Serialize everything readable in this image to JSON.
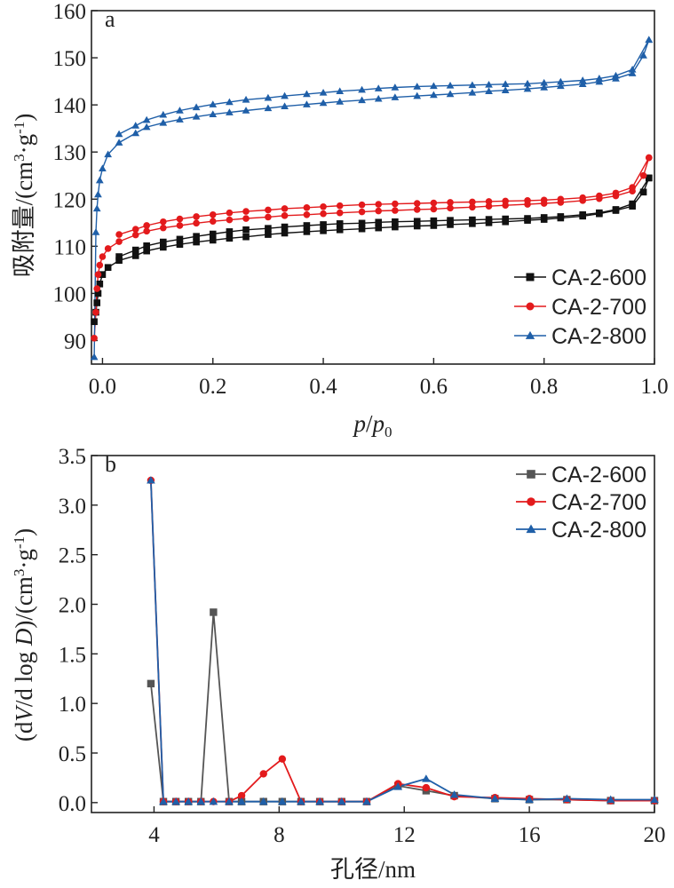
{
  "colors": {
    "CA-2-600": "#111111",
    "CA-2-700": "#e31a1c",
    "CA-2-800": "#1f5fa8",
    "CA-2-600-b": "#555555"
  },
  "chart_data": [
    {
      "panel": "a",
      "type": "line",
      "xlabel_italic_p": "p",
      "xlabel_sep": "/",
      "xlabel_italic_p0": "p",
      "xlabel_sub": "0",
      "ylabel_main": "吸附量/(cm",
      "ylabel_sup1": "3",
      "ylabel_mid": "·g",
      "ylabel_sup2": "-1",
      "ylabel_end": ")",
      "xlim": [
        -0.02,
        1.0
      ],
      "ylim": [
        85,
        160
      ],
      "xticks": [
        "0.0",
        "0.2",
        "0.4",
        "0.6",
        "0.8",
        "1.0"
      ],
      "yticks": [
        "90",
        "100",
        "110",
        "120",
        "130",
        "140",
        "150",
        "160"
      ],
      "legend_position": "lower-right",
      "series": [
        {
          "name": "CA-2-600",
          "marker": "square",
          "adsorption": {
            "x": [
              -0.015,
              -0.012,
              -0.01,
              -0.008,
              -0.005,
              0.0,
              0.01,
              0.03,
              0.06,
              0.08,
              0.11,
              0.14,
              0.17,
              0.2,
              0.23,
              0.26,
              0.3,
              0.33,
              0.37,
              0.4,
              0.43,
              0.47,
              0.5,
              0.53,
              0.57,
              0.6,
              0.63,
              0.67,
              0.7,
              0.73,
              0.77,
              0.8,
              0.83,
              0.87,
              0.9,
              0.93,
              0.96,
              0.98,
              0.99
            ],
            "y": [
              94,
              96,
              98,
              100,
              102,
              104,
              105.5,
              107,
              108,
              109,
              109.8,
              110.4,
              110.9,
              111.3,
              111.7,
              112,
              112.5,
              112.8,
              113.1,
              113.3,
              113.5,
              113.7,
              113.9,
              114.1,
              114.3,
              114.4,
              114.6,
              114.8,
              115,
              115.2,
              115.5,
              115.7,
              116,
              116.4,
              116.9,
              117.6,
              118.5,
              121.5,
              124.5
            ]
          },
          "desorption": {
            "x": [
              0.99,
              0.96,
              0.93,
              0.9,
              0.87,
              0.83,
              0.8,
              0.77,
              0.73,
              0.7,
              0.67,
              0.63,
              0.6,
              0.57,
              0.53,
              0.5,
              0.47,
              0.43,
              0.4,
              0.37,
              0.33,
              0.3,
              0.26,
              0.23,
              0.2,
              0.17,
              0.14,
              0.11,
              0.08,
              0.06,
              0.03
            ],
            "y": [
              124.5,
              119,
              117.8,
              117.1,
              116.7,
              116.3,
              116.1,
              115.9,
              115.8,
              115.7,
              115.6,
              115.5,
              115.4,
              115.3,
              115.2,
              115.1,
              114.9,
              114.8,
              114.6,
              114.4,
              114.1,
              113.8,
              113.5,
              113.1,
              112.6,
              112.1,
              111.5,
              110.9,
              110.1,
              109.2,
              107.8
            ]
          }
        },
        {
          "name": "CA-2-700",
          "marker": "circle",
          "adsorption": {
            "x": [
              -0.015,
              -0.012,
              -0.01,
              -0.008,
              -0.005,
              0.0,
              0.01,
              0.03,
              0.06,
              0.08,
              0.11,
              0.14,
              0.17,
              0.2,
              0.23,
              0.26,
              0.3,
              0.33,
              0.37,
              0.4,
              0.43,
              0.47,
              0.5,
              0.53,
              0.57,
              0.6,
              0.63,
              0.67,
              0.7,
              0.73,
              0.77,
              0.8,
              0.83,
              0.87,
              0.9,
              0.93,
              0.96,
              0.98,
              0.99
            ],
            "y": [
              90.5,
              96,
              101,
              104,
              106,
              107.8,
              109.5,
              111,
              112.4,
              113.2,
              113.9,
              114.4,
              114.9,
              115.3,
              115.6,
              115.9,
              116.2,
              116.5,
              116.7,
              116.9,
              117.1,
              117.3,
              117.5,
              117.6,
              117.8,
              117.9,
              118.1,
              118.3,
              118.5,
              118.7,
              118.9,
              119.1,
              119.3,
              119.7,
              120.1,
              120.7,
              121.7,
              125,
              128.8
            ]
          },
          "desorption": {
            "x": [
              0.99,
              0.96,
              0.93,
              0.9,
              0.87,
              0.83,
              0.8,
              0.77,
              0.73,
              0.7,
              0.67,
              0.63,
              0.6,
              0.57,
              0.53,
              0.5,
              0.47,
              0.43,
              0.4,
              0.37,
              0.33,
              0.3,
              0.26,
              0.23,
              0.2,
              0.17,
              0.14,
              0.11,
              0.08,
              0.06,
              0.03
            ],
            "y": [
              128.8,
              122.5,
              121.3,
              120.7,
              120.3,
              120,
              119.8,
              119.7,
              119.6,
              119.5,
              119.4,
              119.3,
              119.2,
              119.1,
              119,
              118.9,
              118.8,
              118.6,
              118.4,
              118.2,
              118,
              117.7,
              117.4,
              117.1,
              116.7,
              116.3,
              115.8,
              115.2,
              114.4,
              113.6,
              112.5
            ]
          }
        },
        {
          "name": "CA-2-800",
          "marker": "triangle",
          "adsorption": {
            "x": [
              -0.015,
              -0.012,
              -0.01,
              -0.008,
              -0.005,
              0.0,
              0.01,
              0.03,
              0.06,
              0.08,
              0.11,
              0.14,
              0.17,
              0.2,
              0.23,
              0.26,
              0.3,
              0.33,
              0.37,
              0.4,
              0.43,
              0.47,
              0.5,
              0.53,
              0.57,
              0.6,
              0.63,
              0.67,
              0.7,
              0.73,
              0.77,
              0.8,
              0.83,
              0.87,
              0.9,
              0.93,
              0.96,
              0.98,
              0.99
            ],
            "y": [
              86.5,
              113,
              118,
              121,
              124,
              126.5,
              129.5,
              132,
              134,
              135.3,
              136.2,
              136.9,
              137.5,
              138,
              138.4,
              138.8,
              139.3,
              139.7,
              140.1,
              140.4,
              140.7,
              141,
              141.3,
              141.6,
              141.9,
              142.1,
              142.3,
              142.6,
              142.9,
              143.1,
              143.4,
              143.7,
              144,
              144.4,
              144.9,
              145.6,
              146.7,
              150.5,
              153.8
            ]
          },
          "desorption": {
            "x": [
              0.99,
              0.96,
              0.93,
              0.9,
              0.87,
              0.83,
              0.8,
              0.77,
              0.73,
              0.7,
              0.67,
              0.63,
              0.6,
              0.57,
              0.53,
              0.5,
              0.47,
              0.43,
              0.4,
              0.37,
              0.33,
              0.3,
              0.26,
              0.23,
              0.2,
              0.17,
              0.14,
              0.11,
              0.08,
              0.06,
              0.03
            ],
            "y": [
              153.8,
              147.5,
              146.2,
              145.6,
              145.2,
              144.9,
              144.7,
              144.5,
              144.4,
              144.3,
              144.2,
              144.1,
              144,
              143.9,
              143.7,
              143.5,
              143.2,
              142.9,
              142.6,
              142.3,
              141.9,
              141.5,
              141.1,
              140.6,
              140.1,
              139.5,
              138.8,
              137.9,
              136.8,
              135.6,
              133.8
            ]
          }
        }
      ]
    },
    {
      "panel": "b",
      "type": "line",
      "xlabel": "孔径/nm",
      "ylabel_pre": "(d",
      "ylabel_italic_V": "V",
      "ylabel_mid": "/d log ",
      "ylabel_italic_D": "D",
      "ylabel_post": ")/(cm",
      "ylabel_sup1": "3",
      "ylabel_mid2": "·g",
      "ylabel_sup2": "-1",
      "ylabel_end": ")",
      "xlim": [
        2,
        20
      ],
      "ylim": [
        -0.1,
        3.5
      ],
      "xticks": [
        "4",
        "8",
        "12",
        "16",
        "20"
      ],
      "yticks": [
        "0.0",
        "0.5",
        "1.0",
        "1.5",
        "2.0",
        "2.5",
        "3.0",
        "3.5"
      ],
      "legend_position": "top-right",
      "series": [
        {
          "name": "CA-2-600",
          "marker": "square",
          "x": [
            3.9,
            4.3,
            4.7,
            5.1,
            5.5,
            5.9,
            6.4,
            6.8,
            7.5,
            8.1,
            8.7,
            9.3,
            10.0,
            10.8,
            11.8,
            12.7,
            13.6,
            14.9,
            16.0,
            17.2,
            18.6,
            20.0
          ],
          "y": [
            1.2,
            0.01,
            0.01,
            0.01,
            0.01,
            1.92,
            0.01,
            0.01,
            0.01,
            0.01,
            0.01,
            0.01,
            0.01,
            0.01,
            0.17,
            0.12,
            0.07,
            0.04,
            0.03,
            0.03,
            0.02,
            0.02
          ]
        },
        {
          "name": "CA-2-700",
          "marker": "circle",
          "x": [
            3.9,
            4.3,
            4.7,
            5.1,
            5.5,
            5.9,
            6.4,
            6.8,
            7.5,
            8.1,
            8.7,
            9.3,
            10.0,
            10.8,
            11.8,
            12.7,
            13.6,
            14.9,
            16.0,
            17.2,
            18.6,
            20.0
          ],
          "y": [
            3.25,
            0.01,
            0.01,
            0.01,
            0.01,
            0.01,
            0.01,
            0.07,
            0.29,
            0.44,
            0.01,
            0.01,
            0.01,
            0.01,
            0.19,
            0.15,
            0.06,
            0.05,
            0.04,
            0.03,
            0.02,
            0.02
          ]
        },
        {
          "name": "CA-2-800",
          "marker": "triangle",
          "x": [
            3.9,
            4.3,
            4.7,
            5.1,
            5.5,
            5.9,
            6.4,
            6.8,
            7.5,
            8.1,
            8.7,
            9.3,
            10.0,
            10.8,
            11.8,
            12.7,
            13.6,
            14.9,
            16.0,
            17.2,
            18.6,
            20.0
          ],
          "y": [
            3.25,
            0.01,
            0.01,
            0.01,
            0.01,
            0.01,
            0.01,
            0.01,
            0.01,
            0.01,
            0.01,
            0.01,
            0.01,
            0.01,
            0.16,
            0.24,
            0.08,
            0.04,
            0.03,
            0.04,
            0.03,
            0.03
          ]
        }
      ]
    }
  ]
}
